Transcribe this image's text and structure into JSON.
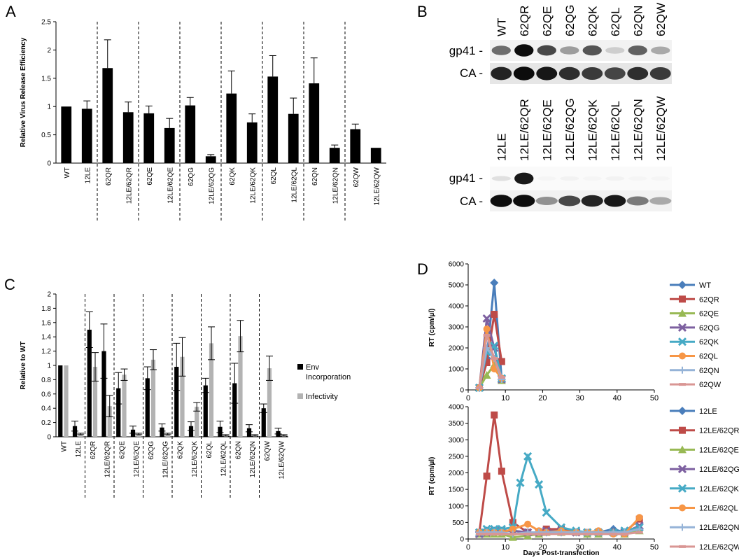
{
  "panels": {
    "a": "A",
    "b": "B",
    "c": "C",
    "d": "D"
  },
  "chart_data": [
    {
      "id": "A",
      "type": "bar",
      "ylabel": "Relative Virus Release Efficiency",
      "ylim": [
        0,
        2.5
      ],
      "yticks": [
        "0",
        "0.5",
        "1",
        "1.5",
        "2",
        "2.5"
      ],
      "categories": [
        "WT",
        "12LE",
        "62QR",
        "12LE/62QR",
        "62QE",
        "12LE/62QE",
        "62QG",
        "12LE/62QG",
        "62QK",
        "12LE/62QK",
        "62QL",
        "12LE/62QL",
        "62QN",
        "12LE/62QN",
        "62QW",
        "12LE/62QW"
      ],
      "series": [
        {
          "values": [
            1.0,
            0.96,
            1.68,
            0.9,
            0.88,
            0.62,
            1.02,
            0.12,
            1.23,
            0.72,
            1.53,
            0.87,
            1.41,
            0.27,
            0.6,
            0.27
          ],
          "errors": [
            0,
            0.14,
            0.5,
            0.18,
            0.13,
            0.17,
            0.14,
            0.03,
            0.4,
            0.15,
            0.37,
            0.28,
            0.45,
            0.05,
            0.09,
            0
          ]
        }
      ],
      "groups_after": [
        2,
        4,
        6,
        8,
        10,
        12,
        14
      ],
      "colors": {
        "bar": "#000000"
      }
    },
    {
      "id": "C",
      "type": "bar",
      "ylabel": "Relative to WT",
      "ylim": [
        0,
        2
      ],
      "yticks": [
        "0",
        "0.2",
        "0.4",
        "0.6",
        "0.8",
        "1",
        "1.2",
        "1.4",
        "1.6",
        "1.8",
        "2"
      ],
      "categories": [
        "WT",
        "12LE",
        "62QR",
        "12LE/62QR",
        "62QE",
        "12LE/62QE",
        "62QG",
        "12LE/62QG",
        "62QK",
        "12LE/62QK",
        "62QL",
        "12LE/62QL",
        "62QN",
        "12LE/62QN",
        "62QW",
        "12LE/62QW"
      ],
      "series": [
        {
          "name": "Env Incorporation",
          "values": [
            1.0,
            0.15,
            1.5,
            1.2,
            0.68,
            0.1,
            0.82,
            0.13,
            0.98,
            0.15,
            0.72,
            0.14,
            0.75,
            0.12,
            0.4,
            0.08
          ],
          "errors": [
            0,
            0.07,
            0.25,
            0.38,
            0.22,
            0.05,
            0.16,
            0.05,
            0.33,
            0.06,
            0.1,
            0.08,
            0.28,
            0.05,
            0.06,
            0.04
          ]
        },
        {
          "name": "Infectivity",
          "values": [
            1.0,
            0.04,
            0.98,
            0.43,
            0.87,
            0.04,
            1.08,
            0.04,
            1.12,
            0.42,
            1.31,
            0.02,
            1.41,
            0.02,
            0.96,
            0.02
          ],
          "errors": [
            0,
            0.01,
            0.2,
            0.15,
            0.08,
            0.01,
            0.14,
            0.01,
            0.27,
            0.06,
            0.23,
            0.01,
            0.22,
            0.01,
            0.17,
            0.01
          ]
        }
      ],
      "legend_lines": [
        [
          "Env",
          "Incorporation"
        ],
        [
          "Infectivity"
        ]
      ],
      "groups_after": [
        2,
        4,
        6,
        8,
        10,
        12,
        14
      ],
      "colors": {
        "env": "#000000",
        "inf": "#b3b3b3"
      }
    },
    {
      "id": "D-top",
      "type": "line",
      "ylabel": "RT (cpm/µl)",
      "xlim": [
        0,
        50
      ],
      "ylim": [
        0,
        6000
      ],
      "xticks": [
        "0",
        "10",
        "20",
        "30",
        "40",
        "50"
      ],
      "yticks": [
        "0",
        "1000",
        "2000",
        "3000",
        "4000",
        "5000",
        "6000"
      ],
      "series": [
        {
          "name": "WT",
          "color": "#4a7ebb",
          "marker": "diamond",
          "x": [
            3,
            5,
            7,
            9
          ],
          "y": [
            100,
            1500,
            5100,
            500
          ]
        },
        {
          "name": "62QR",
          "color": "#be4b48",
          "marker": "square",
          "x": [
            3,
            5,
            7,
            9
          ],
          "y": [
            100,
            1300,
            3600,
            1350
          ]
        },
        {
          "name": "62QE",
          "color": "#98b954",
          "marker": "triangle",
          "x": [
            3,
            5,
            7,
            9
          ],
          "y": [
            100,
            700,
            1200,
            450
          ]
        },
        {
          "name": "62QG",
          "color": "#7d60a0",
          "marker": "x",
          "x": [
            3,
            5,
            7,
            9
          ],
          "y": [
            100,
            3400,
            2000,
            500
          ]
        },
        {
          "name": "62QK",
          "color": "#46aac5",
          "marker": "x",
          "x": [
            3,
            5,
            7,
            9
          ],
          "y": [
            100,
            1800,
            2100,
            550
          ]
        },
        {
          "name": "62QL",
          "color": "#f79646",
          "marker": "circle",
          "x": [
            3,
            5,
            7,
            9
          ],
          "y": [
            100,
            2900,
            1000,
            550
          ]
        },
        {
          "name": "62QN",
          "color": "#95b3d7",
          "marker": "plus",
          "x": [
            3,
            5,
            7,
            9
          ],
          "y": [
            100,
            2000,
            1500,
            500
          ]
        },
        {
          "name": "62QW",
          "color": "#d99694",
          "marker": "minus",
          "x": [
            3,
            5,
            7,
            9
          ],
          "y": [
            100,
            2600,
            1500,
            600
          ]
        }
      ]
    },
    {
      "id": "D-bottom",
      "type": "line",
      "ylabel": "RT (cpm/µl)",
      "xlabel": "Days Post-transfection",
      "xlim": [
        0,
        50
      ],
      "ylim": [
        0,
        4000
      ],
      "xticks": [
        "0",
        "10",
        "20",
        "30",
        "40",
        "50"
      ],
      "yticks": [
        "0",
        "500",
        "1000",
        "1500",
        "2000",
        "2500",
        "3000",
        "3500",
        "4000"
      ],
      "series": [
        {
          "name": "12LE",
          "color": "#4a7ebb",
          "marker": "diamond",
          "x": [
            3,
            5,
            7,
            9,
            12,
            16,
            19,
            21,
            25,
            29,
            32,
            35,
            39,
            42,
            46
          ],
          "y": [
            200,
            250,
            250,
            250,
            250,
            200,
            200,
            200,
            200,
            200,
            150,
            200,
            300,
            200,
            300
          ]
        },
        {
          "name": "12LE/62QR",
          "color": "#be4b48",
          "marker": "square",
          "x": [
            3,
            5,
            7,
            9,
            12,
            16,
            19,
            21,
            25,
            29,
            32,
            35,
            39,
            42,
            46
          ],
          "y": [
            200,
            1900,
            3750,
            2050,
            500,
            200,
            200,
            300,
            300,
            200,
            200,
            200,
            200,
            200,
            600
          ]
        },
        {
          "name": "12LE/62QE",
          "color": "#98b954",
          "marker": "triangle",
          "x": [
            3,
            5,
            7,
            9,
            12,
            16,
            19,
            21,
            25,
            29,
            32,
            35,
            39,
            42,
            46
          ],
          "y": [
            150,
            150,
            150,
            150,
            50,
            100,
            150,
            200,
            200,
            200,
            150,
            150,
            200,
            150,
            250
          ]
        },
        {
          "name": "12LE/62QG",
          "color": "#7d60a0",
          "marker": "x",
          "x": [
            3,
            5,
            7,
            9,
            12,
            16,
            19,
            21,
            25,
            29,
            32,
            35,
            39,
            42,
            46
          ],
          "y": [
            150,
            200,
            250,
            250,
            250,
            200,
            200,
            250,
            250,
            200,
            200,
            200,
            200,
            200,
            400
          ]
        },
        {
          "name": "12LE/62QK",
          "color": "#46aac5",
          "marker": "x",
          "x": [
            3,
            5,
            7,
            9,
            12,
            14,
            16,
            19,
            21,
            25,
            29,
            32,
            35,
            39,
            42,
            46
          ],
          "y": [
            200,
            300,
            300,
            300,
            350,
            1700,
            2500,
            1650,
            800,
            350,
            250,
            200,
            200,
            200,
            250,
            350
          ]
        },
        {
          "name": "12LE/62QL",
          "color": "#f79646",
          "marker": "circle",
          "x": [
            3,
            5,
            7,
            9,
            12,
            16,
            19,
            21,
            25,
            29,
            32,
            35,
            39,
            42,
            46
          ],
          "y": [
            200,
            200,
            200,
            200,
            300,
            450,
            250,
            200,
            250,
            200,
            200,
            250,
            150,
            150,
            650
          ]
        },
        {
          "name": "12LE/62QN",
          "color": "#95b3d7",
          "marker": "plus",
          "x": [
            3,
            5,
            7,
            9,
            12,
            16,
            19,
            21,
            25,
            29,
            32,
            35,
            39,
            42,
            46
          ],
          "y": [
            200,
            200,
            200,
            200,
            150,
            200,
            200,
            200,
            200,
            200,
            200,
            200,
            200,
            200,
            300
          ]
        },
        {
          "name": "12LE/62QW",
          "color": "#d99694",
          "marker": "minus",
          "x": [
            3,
            5,
            7,
            9,
            12,
            16,
            19,
            21,
            25,
            29,
            32,
            35,
            39,
            42,
            46
          ],
          "y": [
            150,
            150,
            150,
            150,
            150,
            150,
            150,
            150,
            150,
            150,
            150,
            150,
            150,
            150,
            200
          ]
        }
      ]
    }
  ],
  "blot": {
    "top_lanes": [
      "WT",
      "62QR",
      "62QE",
      "62QG",
      "62QK",
      "62QL",
      "62QN",
      "62QW"
    ],
    "bottom_lanes": [
      "12LE",
      "12LE/62QR",
      "12LE/62QE",
      "12LE/62QG",
      "12LE/62QK",
      "12LE/62QL",
      "12LE/62QN",
      "12LE/62QW"
    ],
    "row_labels": {
      "gp41": "gp41 -",
      "ca": "CA -"
    },
    "top_gp41_intensity": [
      0.55,
      0.95,
      0.7,
      0.35,
      0.65,
      0.15,
      0.6,
      0.3
    ],
    "top_ca_intensity": [
      0.85,
      0.95,
      0.9,
      0.8,
      0.75,
      0.7,
      0.8,
      0.75
    ],
    "bottom_gp41_intensity": [
      0.1,
      0.9,
      0.02,
      0.03,
      0.02,
      0.03,
      0.02,
      0.02
    ],
    "bottom_ca_intensity": [
      0.95,
      0.95,
      0.4,
      0.7,
      0.85,
      0.9,
      0.5,
      0.3
    ]
  }
}
